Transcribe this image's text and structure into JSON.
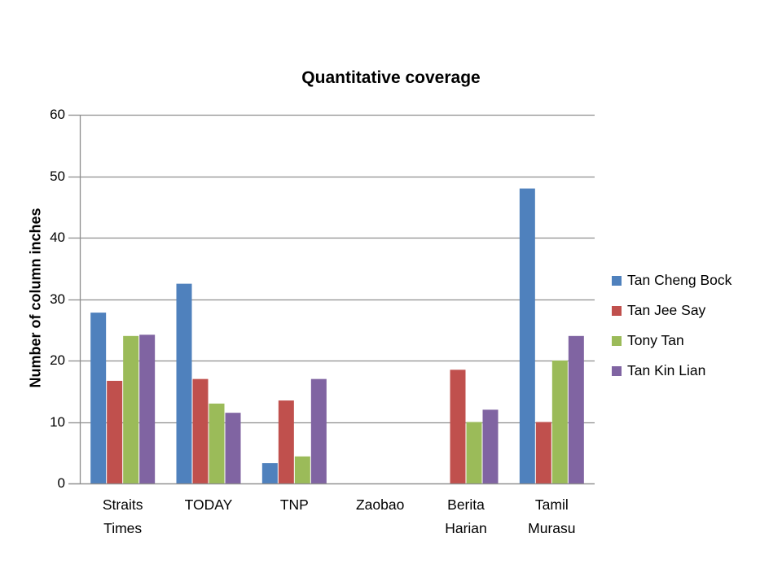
{
  "title": "Quantitative coverage",
  "ylabel": "Number of column inches",
  "chart_data": {
    "type": "bar",
    "title": "Quantitative coverage",
    "xlabel": "",
    "ylabel": "Number of column inches",
    "categories": [
      "Straits Times",
      "TODAY",
      "TNP",
      "Zaobao",
      "Berita Harian",
      "Tamil Murasu"
    ],
    "series": [
      {
        "name": "Tan Cheng Bock",
        "color": "#4F81BD",
        "values": [
          27.8,
          32.5,
          3.3,
          0,
          0,
          48
        ]
      },
      {
        "name": "Tan Jee Say",
        "color": "#C0504D",
        "values": [
          16.7,
          17,
          13.5,
          0,
          18.5,
          10
        ]
      },
      {
        "name": "Tony Tan",
        "color": "#9BBB59",
        "values": [
          24,
          13,
          4.4,
          0,
          10,
          20
        ]
      },
      {
        "name": "Tan Kin Lian",
        "color": "#8064A2",
        "values": [
          24.2,
          11.5,
          17,
          0,
          12,
          24
        ]
      }
    ],
    "ylim": [
      0,
      60
    ],
    "yticks": [
      0,
      10,
      20,
      30,
      40,
      50,
      60
    ],
    "grid": true,
    "legend_position": "right",
    "axis_color": "#8E8E8E",
    "text_color": "#000000",
    "background_color": "#FFFFFF"
  }
}
